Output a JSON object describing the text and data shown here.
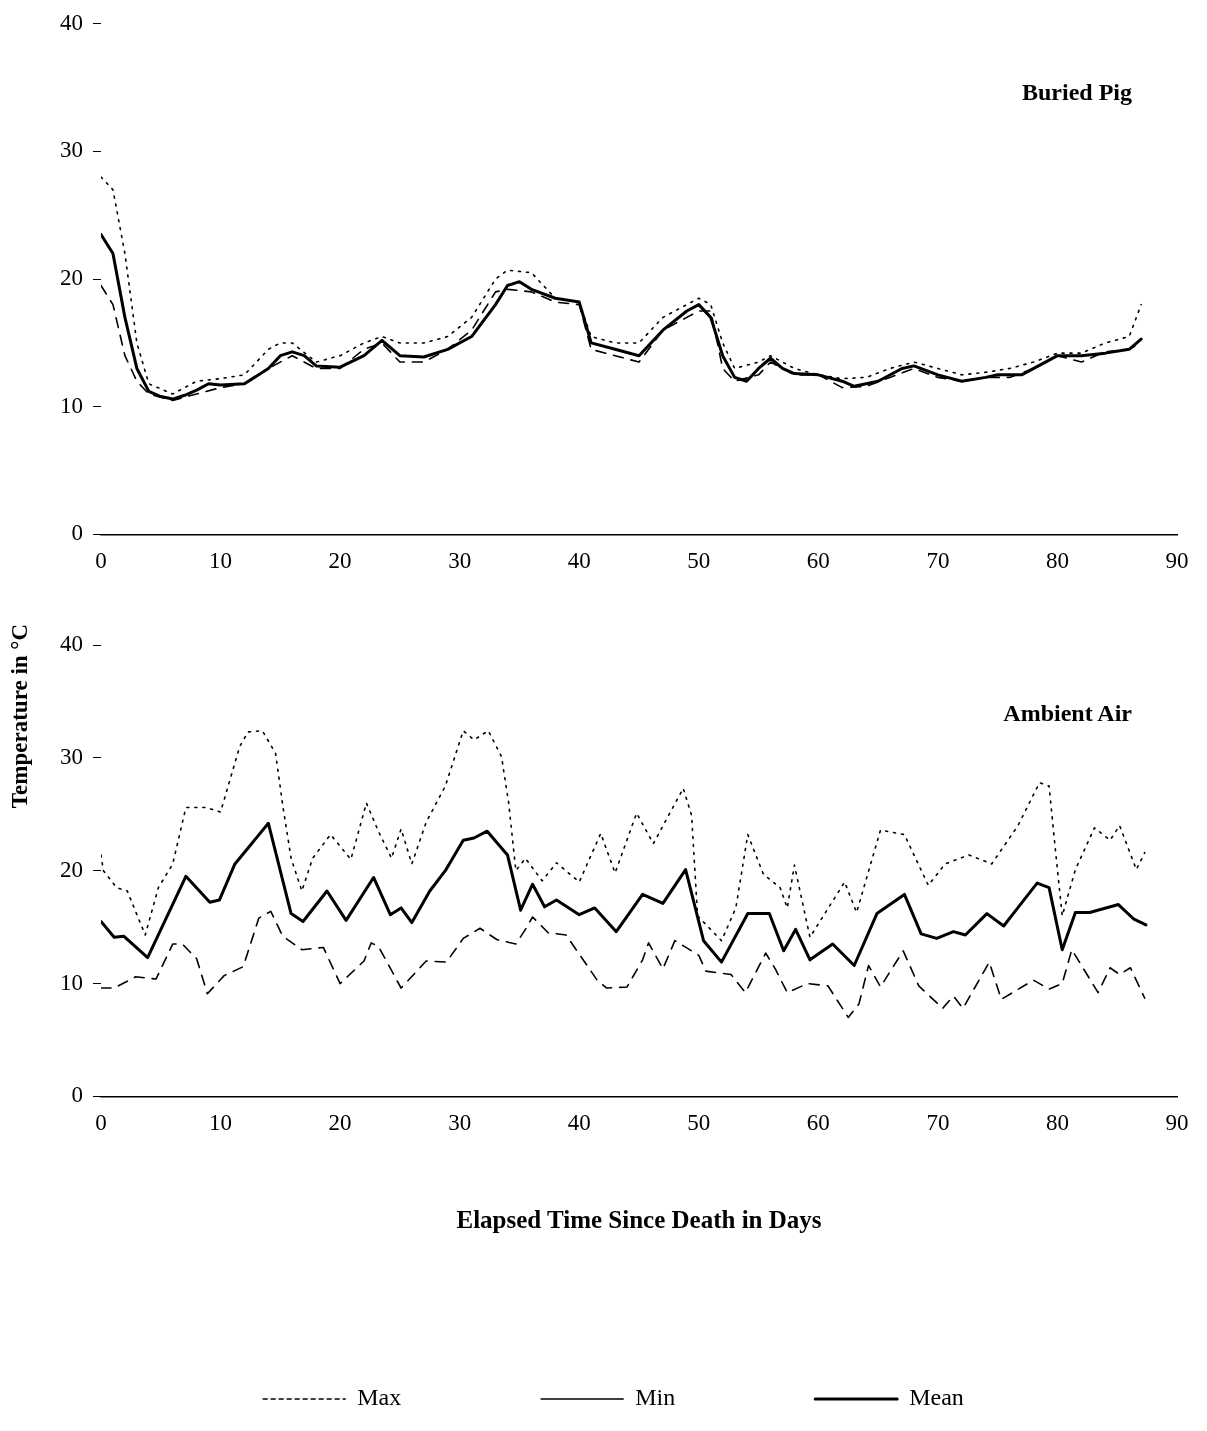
{
  "chart_data": [
    {
      "type": "line",
      "title": "Buried Pig",
      "ylabel": "Temperature in °C",
      "xlim": [
        0,
        90
      ],
      "ylim": [
        0,
        40
      ],
      "xticks": [
        0,
        10,
        20,
        30,
        40,
        50,
        60,
        70,
        80,
        90
      ],
      "yticks": [
        0,
        10,
        20,
        30,
        40
      ],
      "grid": false,
      "marker": "none",
      "series": [
        {
          "color": "#000000",
          "line_style": "dotted",
          "x": [
            0,
            1,
            2,
            3,
            4,
            6,
            8,
            10,
            12,
            14,
            15,
            16,
            18,
            20,
            22,
            23.5,
            25,
            27,
            29,
            31,
            33,
            34,
            36,
            38,
            40,
            41,
            43,
            45,
            47,
            49,
            50,
            51,
            52,
            53,
            55,
            56,
            58,
            60,
            62,
            64,
            66,
            68,
            70,
            72,
            74,
            76,
            78,
            80,
            82,
            84,
            86,
            87
          ],
          "values": [
            28,
            27,
            22,
            15,
            11.8,
            11,
            12,
            12.2,
            12.5,
            14.5,
            15,
            15,
            13.5,
            14,
            15,
            15.5,
            15,
            15,
            15.5,
            17,
            20,
            20.7,
            20.5,
            18.5,
            18.2,
            15.5,
            15,
            15,
            17,
            18,
            18.5,
            18,
            15,
            13,
            13.5,
            14,
            13,
            12.5,
            12.2,
            12.3,
            13,
            13.5,
            13,
            12.5,
            12.7,
            13,
            13.5,
            14.2,
            14.2,
            15,
            15.5,
            18
          ]
        },
        {
          "color": "#000000",
          "line_style": "dashed",
          "x": [
            0,
            1,
            2,
            3,
            4,
            6,
            8,
            10,
            12,
            14,
            16,
            18,
            20,
            22,
            23.5,
            25,
            27,
            29,
            31,
            33,
            34,
            36,
            38,
            40,
            41,
            43,
            45,
            47,
            49,
            50,
            51,
            52,
            53,
            55,
            56,
            58,
            60,
            62,
            64,
            66,
            68,
            70,
            72,
            74,
            76,
            78,
            80,
            82,
            84,
            86,
            87
          ],
          "values": [
            19.5,
            18,
            14,
            12,
            11,
            10.5,
            11,
            11.5,
            11.8,
            13,
            14,
            13,
            13,
            14.5,
            15,
            13.5,
            13.5,
            14.5,
            16,
            19,
            19.2,
            19,
            18.2,
            18,
            14.5,
            14,
            13.5,
            16,
            17,
            17.5,
            17.5,
            13,
            12,
            12.5,
            13.5,
            12.5,
            12.5,
            11.5,
            11.6,
            12.3,
            13,
            12.3,
            12,
            12.3,
            12.3,
            13,
            14,
            13.5,
            14.3,
            14.5,
            15
          ]
        },
        {
          "color": "#000000",
          "line_style": "solid",
          "x": [
            0,
            1,
            2,
            3,
            4,
            5,
            6,
            7,
            8,
            9,
            10,
            12,
            14,
            15,
            16,
            17,
            18,
            20,
            22,
            23.5,
            25,
            27,
            29,
            31,
            33,
            34,
            35,
            36,
            38,
            40,
            41,
            43,
            45,
            47,
            49,
            50,
            51,
            52,
            53,
            54,
            55,
            56,
            57,
            58,
            60,
            62,
            63,
            65,
            67,
            68,
            70,
            72,
            74,
            75,
            77,
            79,
            80,
            82,
            84,
            86,
            87
          ],
          "values": [
            23.5,
            22,
            17,
            13,
            11.2,
            10.8,
            10.6,
            10.9,
            11.3,
            11.8,
            11.7,
            11.8,
            13,
            14,
            14.3,
            14,
            13.2,
            13.1,
            14,
            15.2,
            14,
            13.9,
            14.5,
            15.5,
            18,
            19.5,
            19.8,
            19.2,
            18.5,
            18.2,
            15,
            14.5,
            14,
            16,
            17.5,
            18,
            17,
            14,
            12.3,
            12,
            13,
            13.8,
            13,
            12.6,
            12.5,
            12,
            11.6,
            12,
            13,
            13.2,
            12.5,
            12,
            12.3,
            12.5,
            12.5,
            13.5,
            14,
            14,
            14.2,
            14.5,
            15.3
          ]
        }
      ]
    },
    {
      "type": "line",
      "title": "Ambient Air",
      "xlabel": "Elapsed Time Since Death in Days",
      "xlim": [
        0,
        90
      ],
      "ylim": [
        0,
        40
      ],
      "xticks": [
        0,
        10,
        20,
        30,
        40,
        50,
        60,
        70,
        80,
        90
      ],
      "yticks": [
        0,
        10,
        20,
        30,
        40
      ],
      "grid": false,
      "marker": "none",
      "legend": "bottom",
      "series": [
        {
          "name": "Max",
          "color": "#000000",
          "line_style": "dotted",
          "x": [
            0,
            0.2,
            1.3,
            2.2,
            3.7,
            4.8,
            6,
            7.1,
            8.8,
            10,
            11.6,
            12.3,
            13.5,
            14.6,
            15.2,
            15.9,
            16.8,
            17.7,
            19.2,
            20.9,
            22.2,
            23.2,
            24.3,
            25.1,
            26,
            27.2,
            28.8,
            30.3,
            31.2,
            32.4,
            33.5,
            34.1,
            34.7,
            35.5,
            36.9,
            38.1,
            40,
            41.8,
            43,
            44.8,
            46.2,
            48.7,
            49.4,
            49.9,
            51.9,
            53.1,
            54.1,
            55.4,
            56.8,
            57.4,
            58,
            59.3,
            62.2,
            63.2,
            65.2,
            67.2,
            69.2,
            70.6,
            72.6,
            74.5,
            76.7,
            78.5,
            79.3,
            79.9,
            80.4,
            81.5,
            83.1,
            84.4,
            85.2,
            86.6,
            87.3
          ],
          "values": [
            21.4,
            20,
            18.5,
            18.2,
            14.3,
            18.5,
            20.6,
            25.6,
            25.6,
            25.2,
            31,
            32.3,
            32.4,
            30.4,
            25.8,
            21.1,
            18.2,
            21.1,
            23.2,
            21,
            26,
            23.5,
            21.1,
            23.7,
            20.6,
            24.3,
            27.5,
            32.4,
            31.6,
            32.4,
            30.1,
            26,
            20,
            21.1,
            19.1,
            20.7,
            19,
            23.3,
            19.8,
            25.1,
            22.4,
            27.3,
            24.9,
            16,
            13.8,
            16.7,
            23.2,
            19.7,
            18.5,
            16.7,
            20.5,
            14.1,
            19,
            16.3,
            23.6,
            23.2,
            18.7,
            20.6,
            21.4,
            20.6,
            24,
            27.8,
            27.5,
            21.1,
            16,
            20.1,
            23.8,
            22.7,
            24,
            20.1,
            21.6
          ]
        },
        {
          "name": "Min",
          "color": "#000000",
          "line_style": "dashed",
          "x": [
            0,
            1.1,
            2.9,
            4.6,
            6,
            6.8,
            8,
            8.9,
            10.3,
            11.9,
            13.2,
            14.2,
            15.2,
            16.8,
            18.6,
            20,
            22,
            22.6,
            23.2,
            25.1,
            27.2,
            28.9,
            30.3,
            31.7,
            33.1,
            34.7,
            35.5,
            36.1,
            37.4,
            38.9,
            41.5,
            42.3,
            44,
            45.3,
            45.8,
            47,
            48,
            50,
            50.6,
            52.7,
            53.9,
            55.6,
            56.4,
            57.4,
            59.1,
            60.8,
            62.5,
            63.4,
            64.2,
            65.2,
            67.1,
            68.4,
            70.4,
            71.3,
            72.1,
            74.3,
            75.3,
            78,
            79.3,
            80.4,
            81.2,
            83.4,
            84.4,
            85.2,
            86.1,
            87.3
          ],
          "values": [
            9.6,
            9.6,
            10.6,
            10.4,
            13.5,
            13.5,
            12.2,
            9.1,
            10.7,
            11.5,
            15.8,
            16.4,
            14.2,
            13,
            13.2,
            10,
            12,
            13.6,
            13.3,
            9.6,
            12,
            11.9,
            14,
            14.9,
            13.9,
            13.5,
            14.8,
            15.9,
            14.5,
            14.3,
            10.3,
            9.6,
            9.7,
            12.1,
            13.6,
            11.3,
            13.8,
            12.5,
            11.1,
            10.8,
            9.2,
            12.7,
            11.3,
            9.2,
            10,
            9.8,
            7,
            8.2,
            11.6,
            9.7,
            12.9,
            9.8,
            7.8,
            8.9,
            7.8,
            11.9,
            8.6,
            10.3,
            9.5,
            10,
            13,
            9.2,
            11.4,
            10.8,
            11.4,
            8.7
          ]
        },
        {
          "name": "Mean",
          "color": "#000000",
          "line_style": "solid",
          "x": [
            0,
            1.1,
            1.9,
            3.9,
            7.1,
            9.1,
            9.9,
            11.2,
            14,
            15.9,
            16.9,
            18.9,
            20.5,
            22.8,
            24.2,
            25.1,
            26,
            27.5,
            28.8,
            30.3,
            31.2,
            32.3,
            34,
            35.1,
            36.1,
            37.1,
            38.1,
            40,
            41.3,
            43.1,
            45.3,
            47,
            48.9,
            50.4,
            51.9,
            54.1,
            55.9,
            57.1,
            58.1,
            59.3,
            61.2,
            63,
            64.9,
            67.2,
            68.6,
            69.9,
            71.3,
            72.3,
            74.1,
            75.5,
            78.3,
            79.3,
            80.4,
            81.5,
            82.7,
            85.1,
            86.4,
            87.4
          ],
          "values": [
            15.5,
            14.1,
            14.2,
            12.3,
            19.5,
            17.2,
            17.4,
            20.6,
            24.2,
            16.2,
            15.5,
            18.2,
            15.6,
            19.4,
            16.1,
            16.7,
            15.4,
            18.2,
            20,
            22.7,
            22.9,
            23.5,
            21.4,
            16.5,
            18.8,
            16.8,
            17.4,
            16.1,
            16.7,
            14.6,
            17.9,
            17.1,
            20.1,
            13.8,
            11.9,
            16.2,
            16.2,
            12.9,
            14.8,
            12.1,
            13.5,
            11.6,
            16.2,
            17.9,
            14.4,
            14,
            14.6,
            14.3,
            16.2,
            15.1,
            18.9,
            18.5,
            13,
            16.3,
            16.3,
            17,
            15.7,
            15.2
          ]
        }
      ]
    }
  ]
}
